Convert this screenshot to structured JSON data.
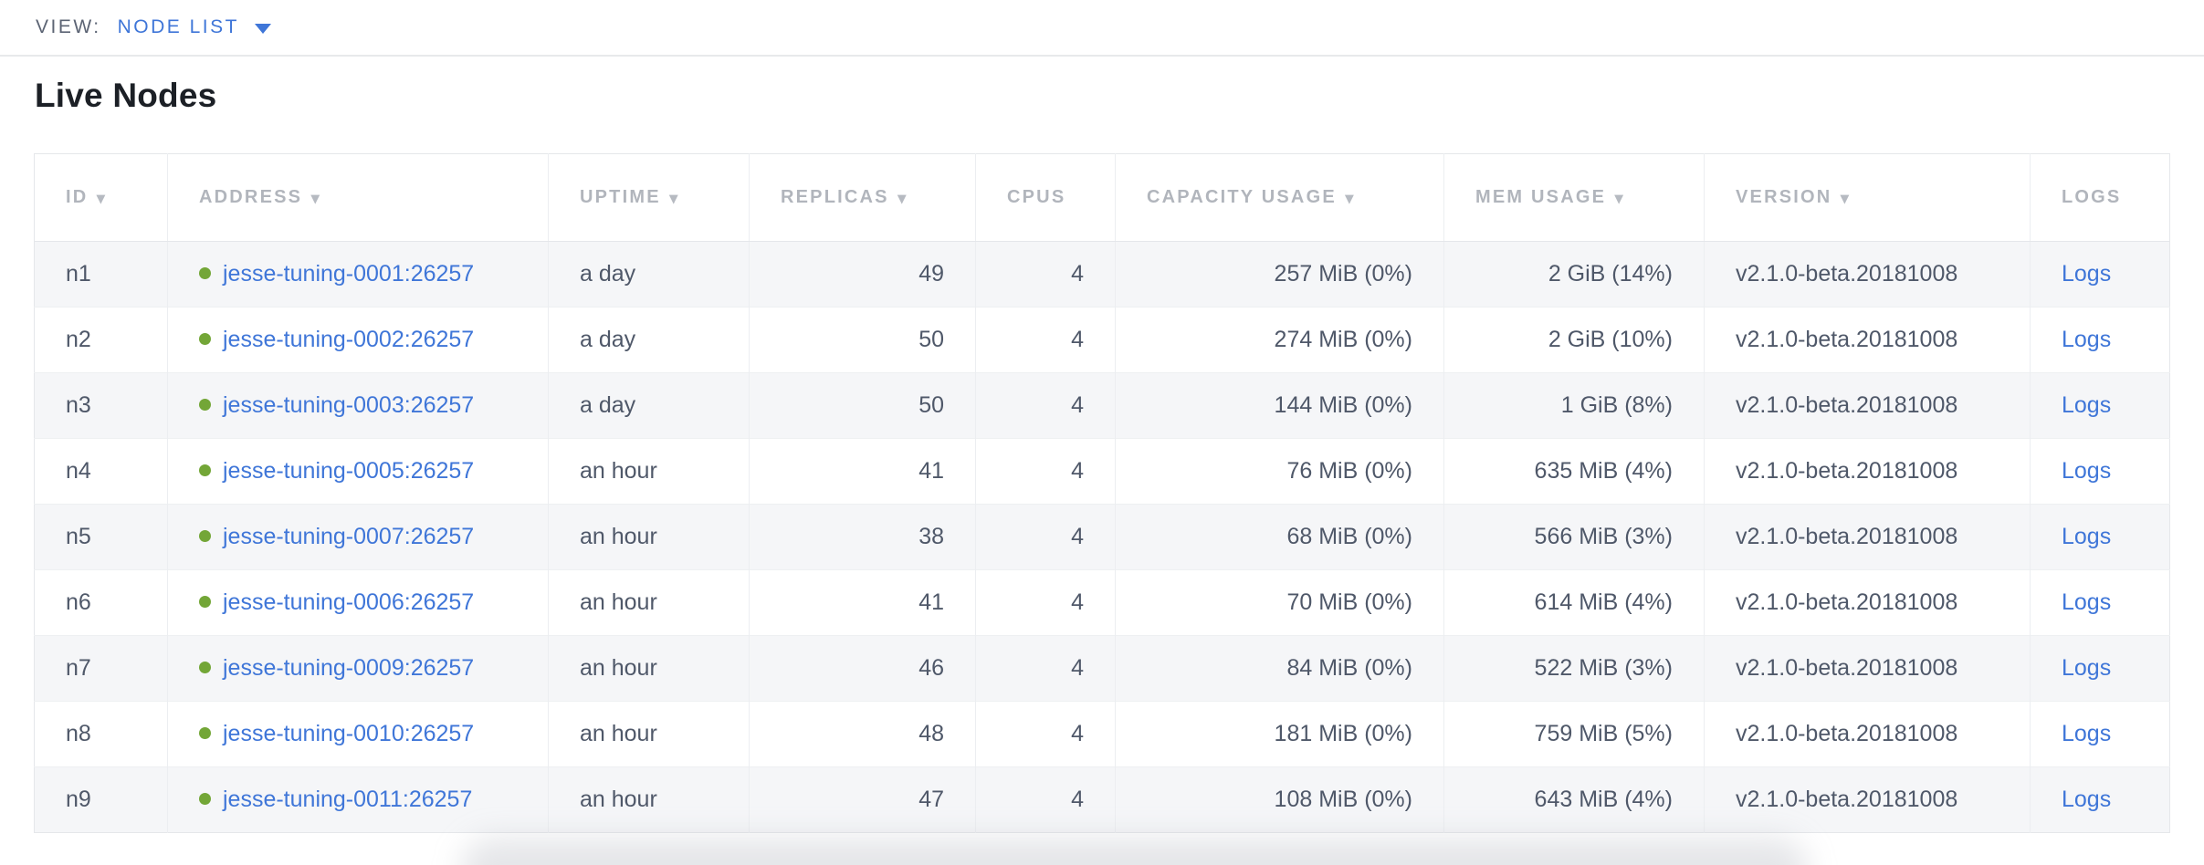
{
  "view_bar": {
    "label": "VIEW:",
    "selected": "NODE LIST"
  },
  "page": {
    "title": "Live Nodes"
  },
  "icons": {
    "view_dropdown": "chevron-down-icon",
    "sort_glyph": "▼",
    "live_status": "live-status-dot"
  },
  "colors": {
    "link_blue": "#3f76d8",
    "live_green": "#73a637",
    "header_gray": "#b1b5bc",
    "cell_text": "#4f5869",
    "row_alt_bg": "#f5f6f8",
    "border": "#e5e7ea"
  },
  "table": {
    "columns": [
      {
        "key": "id",
        "label": "ID",
        "sortable": true
      },
      {
        "key": "address",
        "label": "ADDRESS",
        "sortable": true
      },
      {
        "key": "uptime",
        "label": "UPTIME",
        "sortable": true
      },
      {
        "key": "replicas",
        "label": "REPLICAS",
        "sortable": true
      },
      {
        "key": "cpus",
        "label": "CPUS",
        "sortable": false
      },
      {
        "key": "capacity",
        "label": "CAPACITY USAGE",
        "sortable": true
      },
      {
        "key": "mem",
        "label": "MEM USAGE",
        "sortable": true
      },
      {
        "key": "version",
        "label": "VERSION",
        "sortable": true
      },
      {
        "key": "logs",
        "label": "LOGS",
        "sortable": false
      }
    ],
    "rows": [
      {
        "id": "n1",
        "address": "jesse-tuning-0001:26257",
        "status": "live",
        "uptime": "a day",
        "replicas": "49",
        "cpus": "4",
        "capacity": "257 MiB (0%)",
        "mem": "2 GiB (14%)",
        "version": "v2.1.0-beta.20181008",
        "logs": "Logs"
      },
      {
        "id": "n2",
        "address": "jesse-tuning-0002:26257",
        "status": "live",
        "uptime": "a day",
        "replicas": "50",
        "cpus": "4",
        "capacity": "274 MiB (0%)",
        "mem": "2 GiB (10%)",
        "version": "v2.1.0-beta.20181008",
        "logs": "Logs"
      },
      {
        "id": "n3",
        "address": "jesse-tuning-0003:26257",
        "status": "live",
        "uptime": "a day",
        "replicas": "50",
        "cpus": "4",
        "capacity": "144 MiB (0%)",
        "mem": "1 GiB (8%)",
        "version": "v2.1.0-beta.20181008",
        "logs": "Logs"
      },
      {
        "id": "n4",
        "address": "jesse-tuning-0005:26257",
        "status": "live",
        "uptime": "an hour",
        "replicas": "41",
        "cpus": "4",
        "capacity": "76 MiB (0%)",
        "mem": "635 MiB (4%)",
        "version": "v2.1.0-beta.20181008",
        "logs": "Logs"
      },
      {
        "id": "n5",
        "address": "jesse-tuning-0007:26257",
        "status": "live",
        "uptime": "an hour",
        "replicas": "38",
        "cpus": "4",
        "capacity": "68 MiB (0%)",
        "mem": "566 MiB (3%)",
        "version": "v2.1.0-beta.20181008",
        "logs": "Logs"
      },
      {
        "id": "n6",
        "address": "jesse-tuning-0006:26257",
        "status": "live",
        "uptime": "an hour",
        "replicas": "41",
        "cpus": "4",
        "capacity": "70 MiB (0%)",
        "mem": "614 MiB (4%)",
        "version": "v2.1.0-beta.20181008",
        "logs": "Logs"
      },
      {
        "id": "n7",
        "address": "jesse-tuning-0009:26257",
        "status": "live",
        "uptime": "an hour",
        "replicas": "46",
        "cpus": "4",
        "capacity": "84 MiB (0%)",
        "mem": "522 MiB (3%)",
        "version": "v2.1.0-beta.20181008",
        "logs": "Logs"
      },
      {
        "id": "n8",
        "address": "jesse-tuning-0010:26257",
        "status": "live",
        "uptime": "an hour",
        "replicas": "48",
        "cpus": "4",
        "capacity": "181 MiB (0%)",
        "mem": "759 MiB (5%)",
        "version": "v2.1.0-beta.20181008",
        "logs": "Logs"
      },
      {
        "id": "n9",
        "address": "jesse-tuning-0011:26257",
        "status": "live",
        "uptime": "an hour",
        "replicas": "47",
        "cpus": "4",
        "capacity": "108 MiB (0%)",
        "mem": "643 MiB (4%)",
        "version": "v2.1.0-beta.20181008",
        "logs": "Logs"
      }
    ]
  }
}
